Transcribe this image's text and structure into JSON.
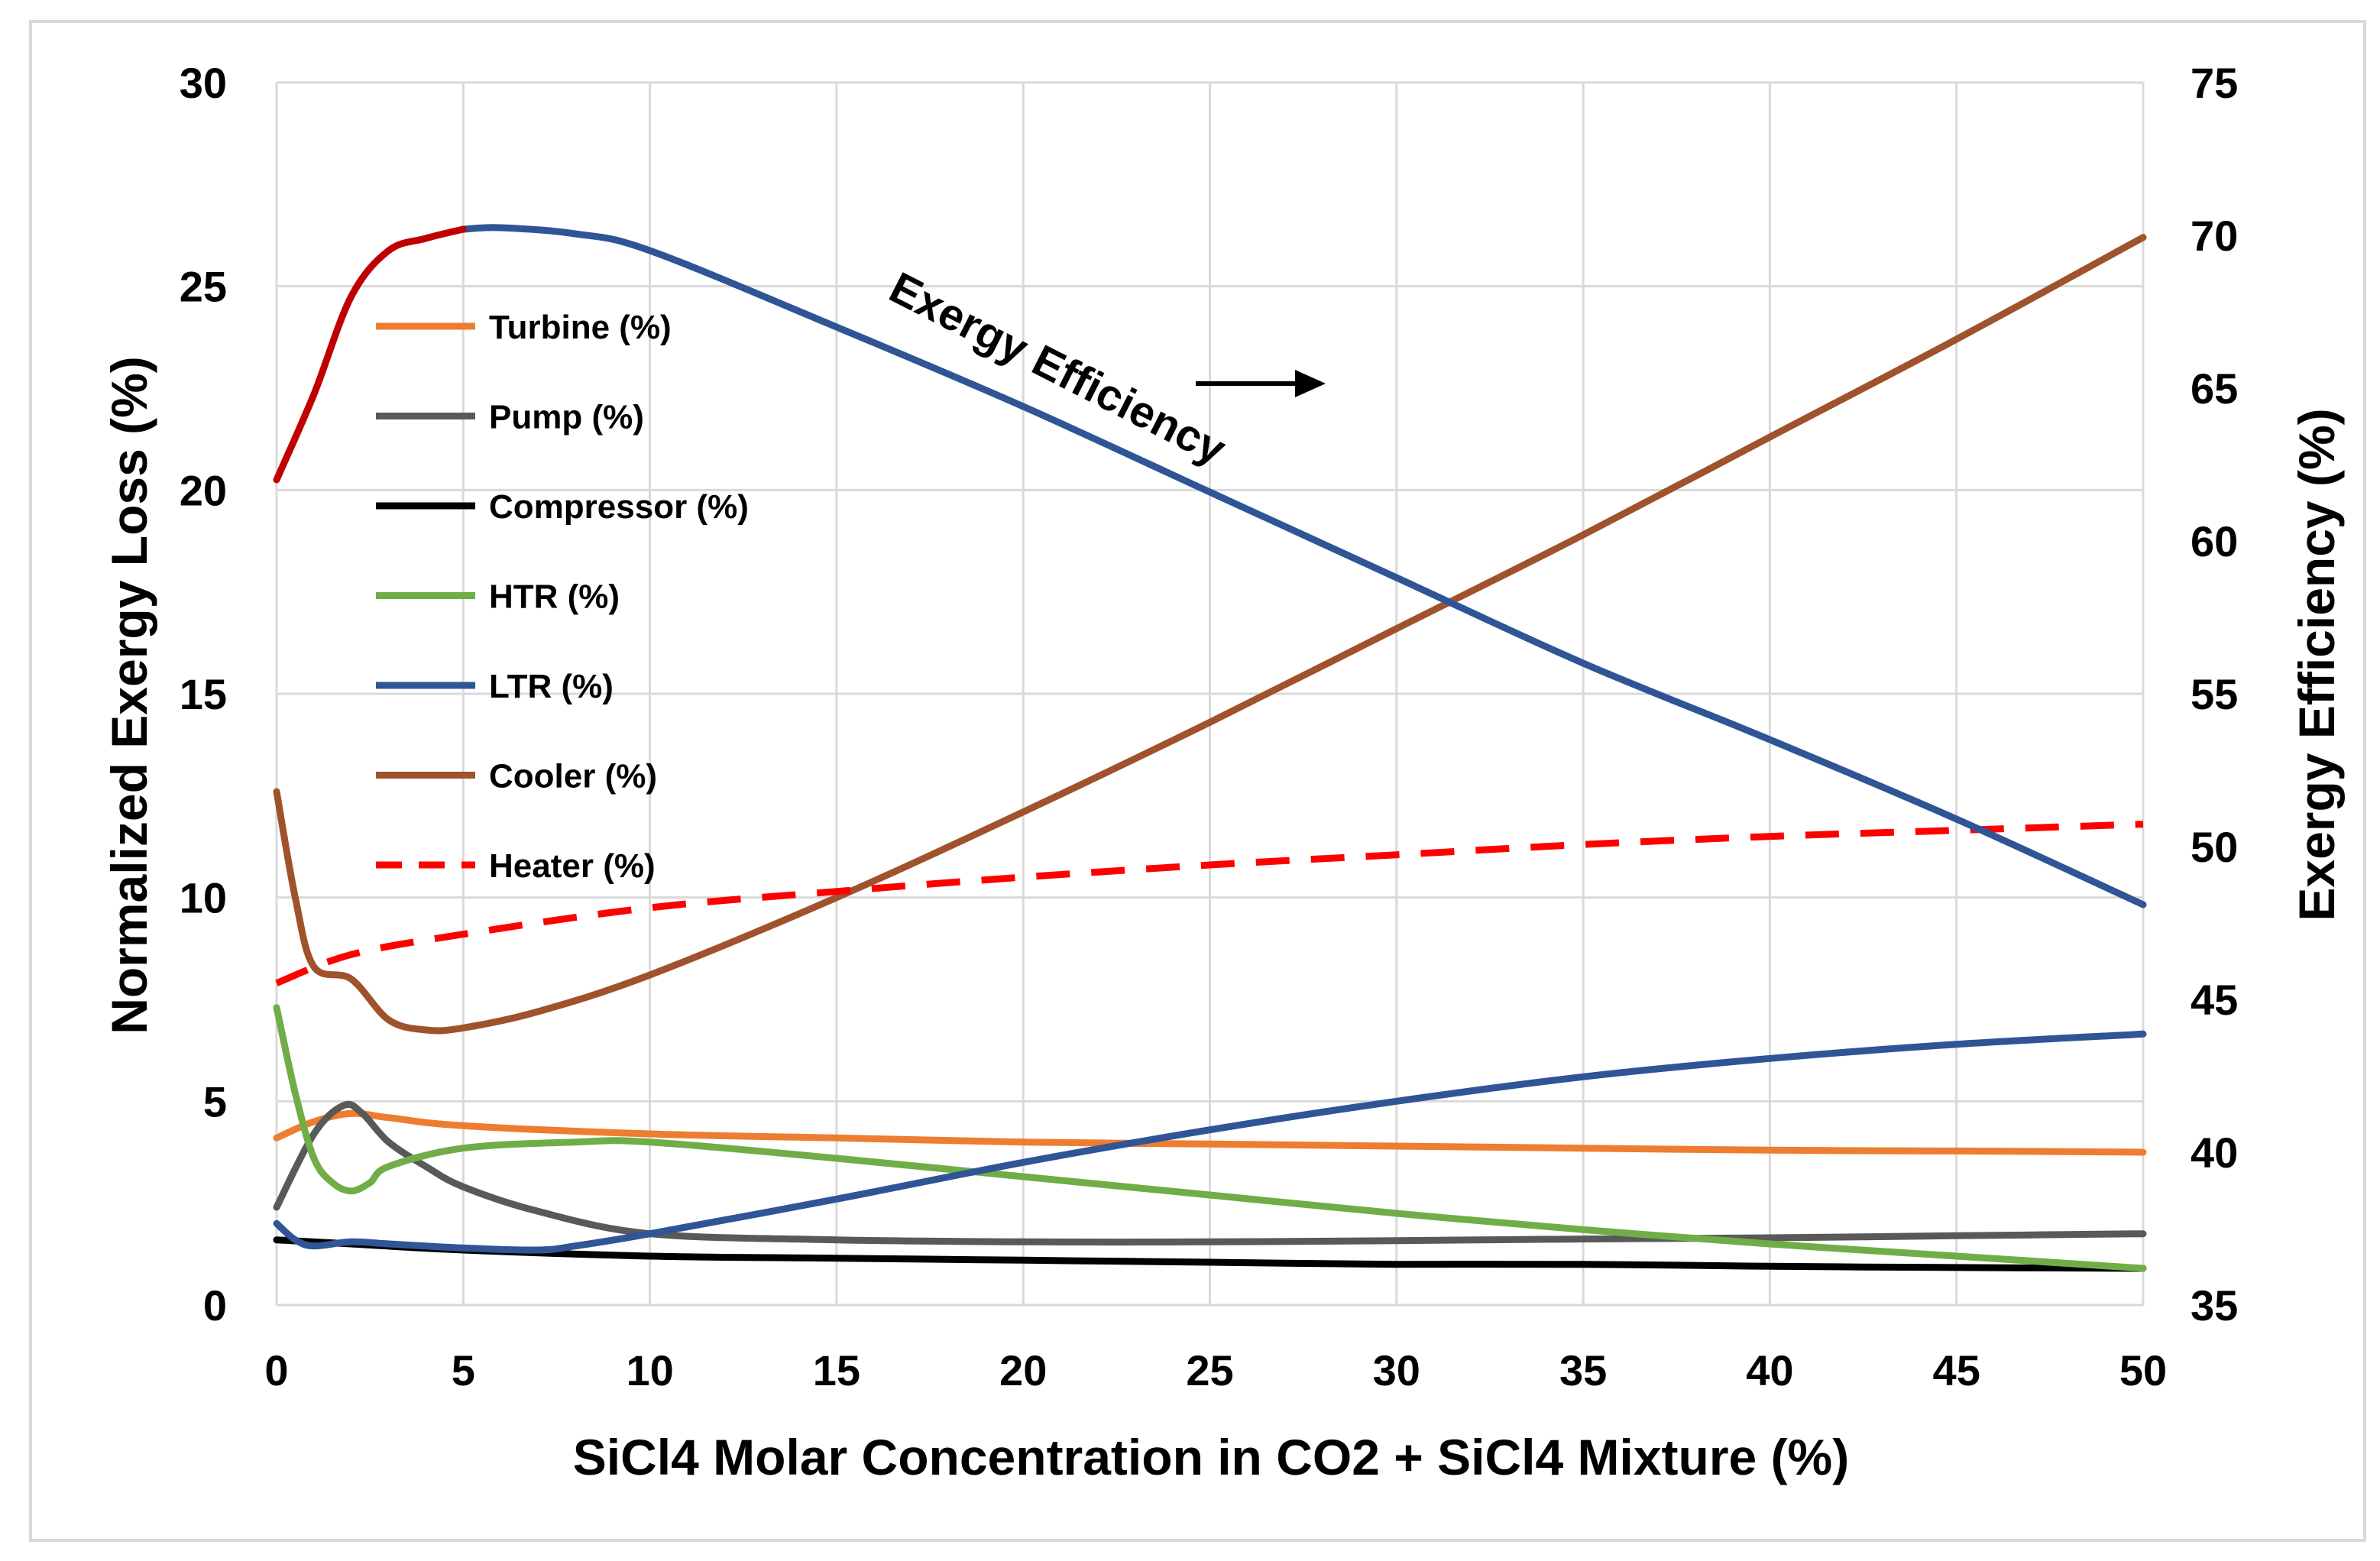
{
  "chart_data": {
    "type": "line",
    "title": "",
    "xlabel": "SiCl4 Molar Concentration in CO2 + SiCl4 Mixture (%)",
    "ylabel": "Normalized Exergy Loss (%)",
    "y2label": "Exergy Efficiency (%)",
    "xlim": [
      0,
      50
    ],
    "ylim": [
      0,
      30
    ],
    "y2lim": [
      35,
      75
    ],
    "grid": true,
    "legend_position": "top-left",
    "x_ticks": [
      "0",
      "5",
      "10",
      "15",
      "20",
      "25",
      "30",
      "35",
      "40",
      "45",
      "50"
    ],
    "y_ticks": [
      "0",
      "5",
      "10",
      "15",
      "20",
      "25",
      "30"
    ],
    "y2_ticks": [
      "35",
      "40",
      "45",
      "50",
      "55",
      "60",
      "65",
      "70",
      "75"
    ],
    "annotation": {
      "text": "Exergy Efficiency",
      "arrow": "right"
    },
    "series": [
      {
        "name": "Turbine (%)",
        "axis": "left",
        "color": "#ED7D31",
        "dash": false,
        "legend": true,
        "x": [
          0,
          1,
          2,
          3,
          5,
          10,
          15,
          20,
          25,
          30,
          35,
          40,
          45,
          50
        ],
        "values": [
          4.1,
          4.5,
          4.7,
          4.6,
          4.4,
          4.2,
          4.1,
          4.0,
          3.95,
          3.9,
          3.85,
          3.8,
          3.78,
          3.75
        ]
      },
      {
        "name": "Pump (%)",
        "axis": "left",
        "color": "#595959",
        "dash": false,
        "legend": true,
        "x": [
          0,
          1,
          1.8,
          2.3,
          3,
          4,
          5,
          7,
          10,
          15,
          20,
          25,
          30,
          35,
          40,
          45,
          50
        ],
        "values": [
          2.4,
          4.2,
          4.9,
          4.7,
          4.0,
          3.4,
          2.9,
          2.3,
          1.75,
          1.6,
          1.55,
          1.55,
          1.58,
          1.62,
          1.65,
          1.7,
          1.75
        ]
      },
      {
        "name": "Compressor (%)",
        "axis": "left",
        "color": "#000000",
        "dash": false,
        "legend": true,
        "x": [
          0,
          2,
          5,
          10,
          15,
          20,
          25,
          30,
          35,
          40,
          45,
          50
        ],
        "values": [
          1.6,
          1.5,
          1.35,
          1.2,
          1.15,
          1.1,
          1.05,
          1.0,
          1.0,
          0.95,
          0.92,
          0.9
        ]
      },
      {
        "name": "HTR (%)",
        "axis": "left",
        "color": "#70AD47",
        "dash": false,
        "legend": true,
        "x": [
          0,
          0.5,
          1,
          1.5,
          2,
          2.5,
          3,
          5,
          8,
          10,
          15,
          20,
          25,
          30,
          35,
          40,
          45,
          50
        ],
        "values": [
          7.3,
          5.2,
          3.6,
          3.0,
          2.8,
          3.0,
          3.4,
          3.85,
          4.0,
          4.0,
          3.6,
          3.15,
          2.7,
          2.25,
          1.85,
          1.5,
          1.2,
          0.9
        ]
      },
      {
        "name": "LTR (%)",
        "axis": "left",
        "color": "#2F5597",
        "dash": false,
        "legend": true,
        "x": [
          0,
          0.5,
          1,
          2,
          3,
          5,
          7,
          8,
          10,
          15,
          20,
          25,
          30,
          35,
          40,
          45,
          50
        ],
        "values": [
          2.0,
          1.6,
          1.45,
          1.55,
          1.5,
          1.4,
          1.35,
          1.45,
          1.75,
          2.6,
          3.5,
          4.3,
          5.0,
          5.6,
          6.05,
          6.4,
          6.65
        ]
      },
      {
        "name": "Cooler (%)",
        "axis": "left",
        "color": "#A0522D",
        "dash": false,
        "legend": true,
        "x": [
          0,
          0.5,
          1,
          2,
          3,
          4,
          5,
          7,
          10,
          15,
          20,
          25,
          30,
          35,
          40,
          45,
          50
        ],
        "values": [
          12.6,
          10.0,
          8.3,
          8.0,
          7.0,
          6.75,
          6.8,
          7.2,
          8.1,
          10.0,
          12.1,
          14.3,
          16.6,
          18.9,
          21.3,
          23.7,
          26.2
        ]
      },
      {
        "name": "Heater (%)",
        "axis": "left",
        "color": "#FF0000",
        "dash": true,
        "legend": true,
        "x": [
          0,
          2,
          5,
          10,
          15,
          20,
          25,
          30,
          35,
          40,
          45,
          50
        ],
        "values": [
          7.9,
          8.6,
          9.1,
          9.75,
          10.15,
          10.5,
          10.8,
          11.05,
          11.3,
          11.5,
          11.65,
          11.8
        ]
      },
      {
        "name": "Exergy Efficiency (%)",
        "axis": "right",
        "color": "#2F5597",
        "dash": false,
        "legend": false,
        "x": [
          5,
          6,
          8,
          10,
          15,
          20,
          25,
          30,
          35,
          40,
          45,
          50
        ],
        "values": [
          70.2,
          70.25,
          70.05,
          69.5,
          67.0,
          64.4,
          61.6,
          58.8,
          56.0,
          53.5,
          50.9,
          48.1
        ]
      },
      {
        "name": "Exergy Efficiency (%) 0-5",
        "axis": "right",
        "color": "#C00000",
        "dash": false,
        "legend": false,
        "x": [
          0,
          1,
          2,
          3,
          4,
          5
        ],
        "values": [
          62.0,
          64.8,
          68.0,
          69.5,
          69.9,
          70.2
        ]
      }
    ]
  }
}
